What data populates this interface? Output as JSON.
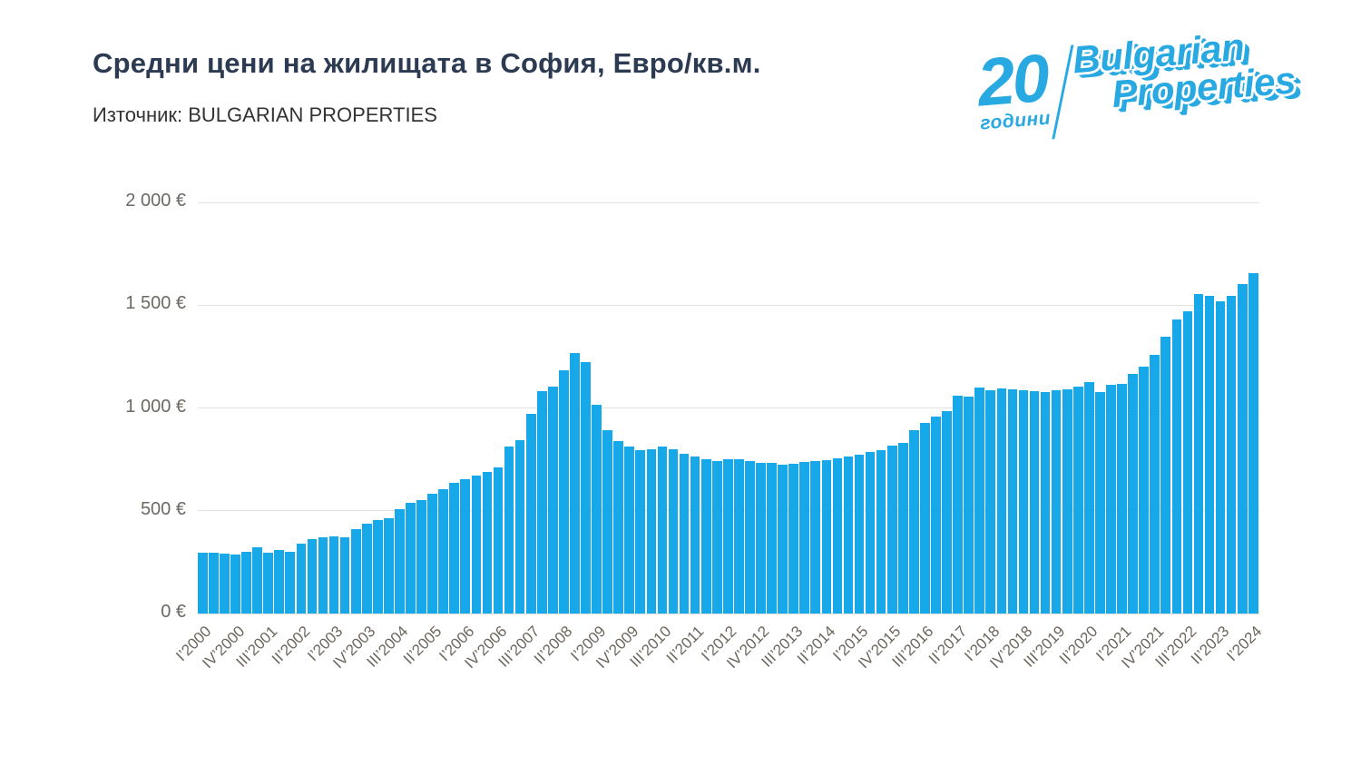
{
  "header": {
    "title": "Средни цени на жилищата в София, Евро/кв.м.",
    "source": "Източник: BULGARIAN PROPERTIES"
  },
  "logo": {
    "number": "20",
    "years_word": "години",
    "brand_line1": "Bulgarian",
    "brand_line2": "Properties",
    "color": "#29a9e1"
  },
  "chart_data": {
    "type": "bar",
    "title": "Средни цени на жилищата в София, Евро/кв.м.",
    "source_note": "Източник: BULGARIAN PROPERTIES",
    "unit": "EUR/кв.м.",
    "bar_color": "#17a8e9",
    "grid": true,
    "legend": "none",
    "ylim": [
      0,
      2000
    ],
    "y_ticks": [
      {
        "value": 0,
        "label": "0 €"
      },
      {
        "value": 500,
        "label": "500 €"
      },
      {
        "value": 1000,
        "label": "1 000 €"
      },
      {
        "value": 1500,
        "label": "1 500 €"
      },
      {
        "value": 2000,
        "label": "2 000 €"
      }
    ],
    "x_tick_interval": 3,
    "x_tick_labels": [
      "I’2000",
      "IV’2000",
      "III’2001",
      "II’2002",
      "I’2003",
      "IV’2003",
      "III’2004",
      "II’2005",
      "I’2006",
      "IV’2006",
      "III’2007",
      "II’2008",
      "I’2009",
      "IV’2009",
      "III’2010",
      "II’2011",
      "I’2012",
      "IV’2012",
      "III’2013",
      "II’2014",
      "I’2015",
      "IV’2015",
      "III’2016",
      "II’2017",
      "I’2018",
      "IV’2018",
      "III’2019",
      "II’2020",
      "I’2021",
      "IV’2021",
      "III’2022",
      "II’2023",
      "I’2024"
    ],
    "categories": [
      "I’2000",
      "II’2000",
      "III’2000",
      "IV’2000",
      "I’2001",
      "II’2001",
      "III’2001",
      "IV’2001",
      "I’2002",
      "II’2002",
      "III’2002",
      "IV’2002",
      "I’2003",
      "II’2003",
      "III’2003",
      "IV’2003",
      "I’2004",
      "II’2004",
      "III’2004",
      "IV’2004",
      "I’2005",
      "II’2005",
      "III’2005",
      "IV’2005",
      "I’2006",
      "II’2006",
      "III’2006",
      "IV’2006",
      "I’2007",
      "II’2007",
      "III’2007",
      "IV’2007",
      "I’2008",
      "II’2008",
      "III’2008",
      "IV’2008",
      "I’2009",
      "II’2009",
      "III’2009",
      "IV’2009",
      "I’2010",
      "II’2010",
      "III’2010",
      "IV’2010",
      "I’2011",
      "II’2011",
      "III’2011",
      "IV’2011",
      "I’2012",
      "II’2012",
      "III’2012",
      "IV’2012",
      "I’2013",
      "II’2013",
      "III’2013",
      "IV’2013",
      "I’2014",
      "II’2014",
      "III’2014",
      "IV’2014",
      "I’2015",
      "II’2015",
      "III’2015",
      "IV’2015",
      "I’2016",
      "II’2016",
      "III’2016",
      "IV’2016",
      "I’2017",
      "II’2017",
      "III’2017",
      "IV’2017",
      "I’2018",
      "II’2018",
      "III’2018",
      "IV’2018",
      "I’2019",
      "II’2019",
      "III’2019",
      "IV’2019",
      "I’2020",
      "II’2020",
      "III’2020",
      "IV’2020",
      "I’2021",
      "II’2021",
      "III’2021",
      "IV’2021",
      "I’2022",
      "II’2022",
      "III’2022",
      "IV’2022",
      "I’2023",
      "II’2023",
      "III’2023",
      "IV’2023",
      "I’2024"
    ],
    "values": [
      295,
      296,
      292,
      289,
      300,
      324,
      295,
      310,
      300,
      340,
      361,
      373,
      376,
      372,
      410,
      435,
      457,
      462,
      510,
      538,
      554,
      583,
      604,
      637,
      655,
      671,
      690,
      713,
      813,
      845,
      973,
      1081,
      1103,
      1184,
      1265,
      1221,
      1015,
      894,
      841,
      813,
      796,
      798,
      811,
      800,
      778,
      762,
      750,
      740,
      752,
      749,
      743,
      735,
      731,
      723,
      730,
      737,
      742,
      748,
      754,
      764,
      774,
      786,
      796,
      819,
      831,
      892,
      926,
      956,
      985,
      1059,
      1055,
      1100,
      1088,
      1096,
      1091,
      1088,
      1081,
      1077,
      1086,
      1091,
      1105,
      1124,
      1077,
      1114,
      1118,
      1165,
      1199,
      1260,
      1347,
      1431,
      1472,
      1553,
      1546,
      1519,
      1546,
      1601,
      1657
    ]
  }
}
